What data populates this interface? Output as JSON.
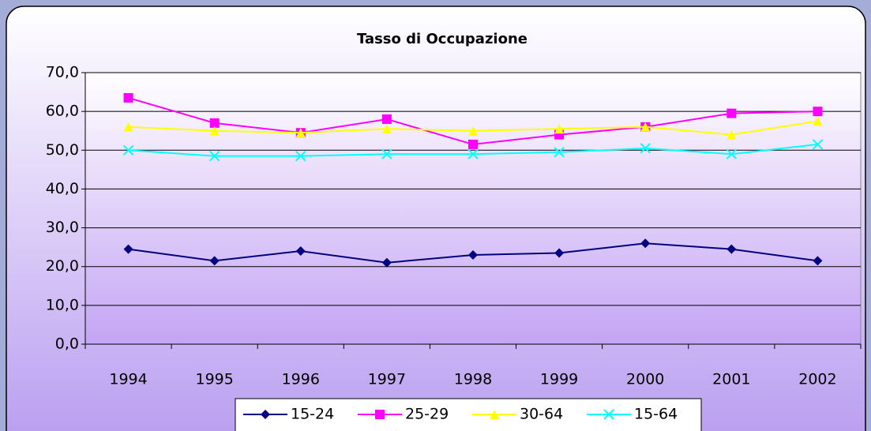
{
  "chart_data": {
    "type": "line",
    "title": "Tasso di Occupazione",
    "categories": [
      "1994",
      "1995",
      "1996",
      "1997",
      "1998",
      "1999",
      "2000",
      "2001",
      "2002"
    ],
    "series": [
      {
        "name": "15-24",
        "color": "#000080",
        "marker": "diamond",
        "values": [
          24.5,
          21.5,
          24.0,
          21.0,
          23.0,
          23.5,
          26.0,
          24.5,
          21.5
        ]
      },
      {
        "name": "25-29",
        "color": "#ff00ff",
        "marker": "square",
        "values": [
          63.5,
          57.0,
          54.5,
          58.0,
          51.5,
          54.0,
          56.0,
          59.5,
          60.0
        ]
      },
      {
        "name": "30-64",
        "color": "#ffff00",
        "marker": "triangle",
        "values": [
          56.0,
          55.0,
          54.5,
          55.5,
          55.0,
          55.5,
          56.0,
          54.0,
          57.5
        ]
      },
      {
        "name": "15-64",
        "color": "#00ffff",
        "marker": "x",
        "values": [
          50.0,
          48.5,
          48.5,
          49.0,
          49.0,
          49.5,
          50.5,
          49.0,
          51.5
        ]
      }
    ],
    "ylim": [
      0,
      70
    ],
    "yticks": [
      {
        "value": 0,
        "label": "0,0"
      },
      {
        "value": 10,
        "label": "10,0"
      },
      {
        "value": 20,
        "label": "20,0"
      },
      {
        "value": 30,
        "label": "30,0"
      },
      {
        "value": 40,
        "label": "40,0"
      },
      {
        "value": 50,
        "label": "50,0"
      },
      {
        "value": 60,
        "label": "60,0"
      },
      {
        "value": 70,
        "label": "70,0"
      }
    ],
    "grid": true,
    "legend": "bottom"
  }
}
